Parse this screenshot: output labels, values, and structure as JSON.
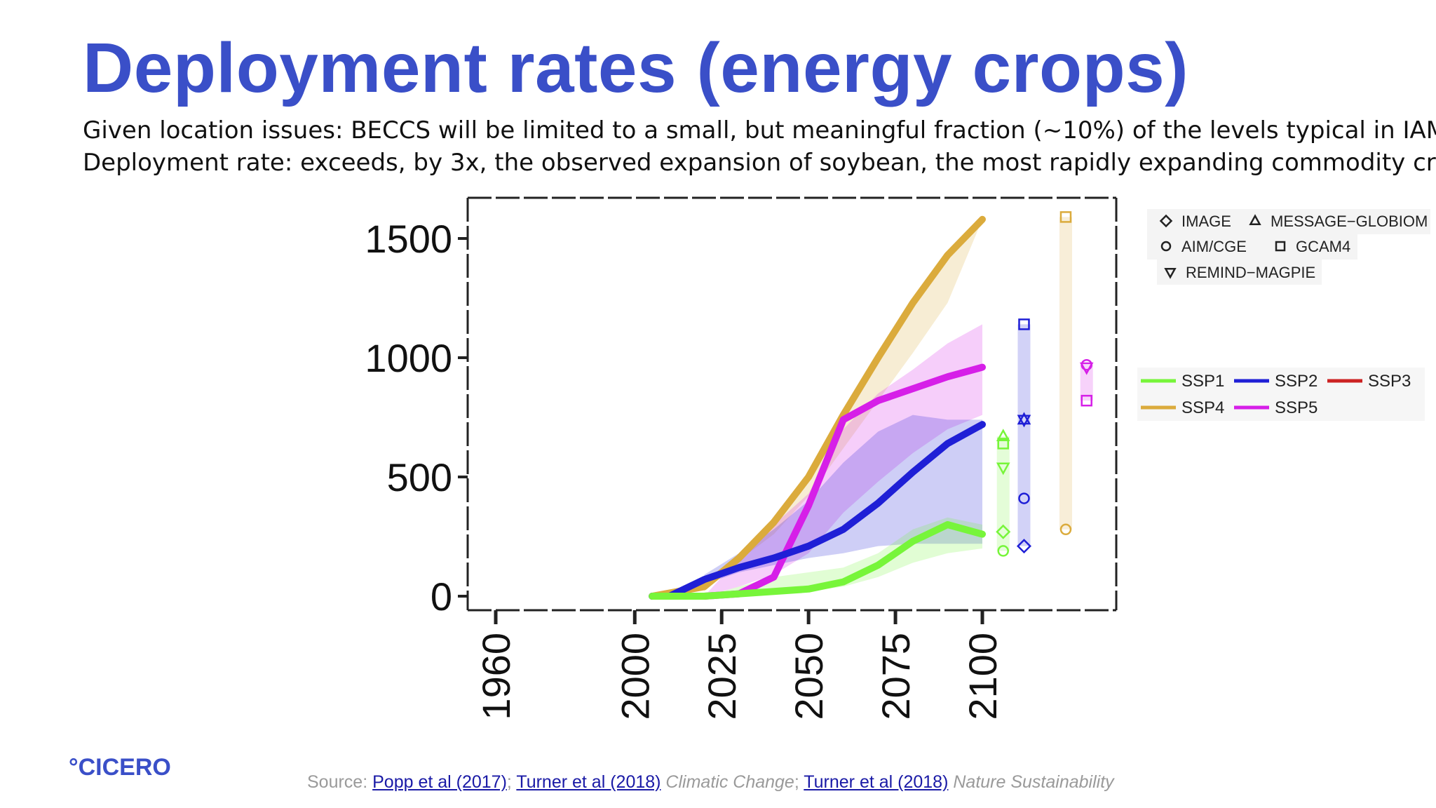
{
  "slide": {
    "title": "Deployment rates (energy crops)",
    "subtitle_1": "Given location issues: BECCS will be limited to a small, but meaningful fraction (~10%) of the levels typical in IAMs",
    "subtitle_2": "Deployment rate: exceeds, by 3x, the observed expansion of soybean, the most rapidly expanding commodity crop",
    "logo": "°CICERO",
    "source": {
      "prefix": "Source: ",
      "link_1": "Popp et al (2017)",
      "sep_1": "; ",
      "link_2": "Turner et al (2018)",
      "journal_1": " Climatic Change",
      "sep_2": "; ",
      "link_3": "Turner et al (2018)",
      "journal_2": " Nature Sustainability"
    }
  },
  "chart_data": {
    "type": "line",
    "xlim": [
      1945,
      2115
    ],
    "ylim": [
      -50,
      1670
    ],
    "x_ticks": [
      1960,
      2000,
      2025,
      2050,
      2075,
      2100
    ],
    "y_ticks": [
      0,
      500,
      1000,
      1500
    ],
    "grid": false,
    "colors": {
      "SSP1": "#77f53a",
      "SSP2": "#1f1fd6",
      "SSP3": "#cc2222",
      "SSP4": "#dbab3c",
      "SSP5": "#d61fe8"
    },
    "series": [
      {
        "name": "SSP4",
        "x": [
          2005,
          2020,
          2030,
          2040,
          2050,
          2060,
          2070,
          2080,
          2090,
          2100
        ],
        "values": [
          0,
          40,
          160,
          310,
          500,
          760,
          1000,
          1230,
          1430,
          1580
        ]
      },
      {
        "name": "SSP5",
        "x": [
          2005,
          2010,
          2020,
          2030,
          2040,
          2050,
          2060,
          2070,
          2080,
          2090,
          2100
        ],
        "values": [
          0,
          0,
          0,
          10,
          80,
          380,
          740,
          820,
          870,
          920,
          960
        ]
      },
      {
        "name": "SSP2",
        "x": [
          2005,
          2010,
          2020,
          2030,
          2040,
          2050,
          2060,
          2070,
          2080,
          2090,
          2100
        ],
        "values": [
          0,
          0,
          70,
          120,
          160,
          210,
          280,
          390,
          520,
          640,
          720
        ]
      },
      {
        "name": "SSP1",
        "x": [
          2005,
          2010,
          2020,
          2030,
          2040,
          2050,
          2060,
          2070,
          2080,
          2090,
          2100
        ],
        "values": [
          0,
          0,
          0,
          10,
          20,
          30,
          60,
          130,
          230,
          300,
          260
        ]
      }
    ],
    "bands": [
      {
        "name": "SSP4",
        "x": [
          2020,
          2030,
          2040,
          2050,
          2060,
          2070,
          2080,
          2090,
          2100
        ],
        "lower": [
          20,
          150,
          260,
          420,
          620,
          820,
          1020,
          1230,
          1580
        ],
        "upper": [
          40,
          170,
          320,
          520,
          780,
          1020,
          1250,
          1440,
          1580
        ]
      },
      {
        "name": "SSP5",
        "x": [
          2020,
          2030,
          2040,
          2050,
          2060,
          2070,
          2080,
          2090,
          2100
        ],
        "lower": [
          0,
          40,
          90,
          180,
          350,
          480,
          600,
          700,
          760
        ],
        "upper": [
          0,
          160,
          300,
          430,
          700,
          850,
          950,
          1060,
          1140
        ]
      },
      {
        "name": "SSP2",
        "x": [
          2020,
          2030,
          2040,
          2050,
          2060,
          2070,
          2080,
          2090,
          2100
        ],
        "lower": [
          50,
          100,
          130,
          160,
          180,
          210,
          220,
          220,
          220
        ],
        "upper": [
          90,
          180,
          280,
          400,
          560,
          690,
          760,
          740,
          740
        ]
      },
      {
        "name": "SSP1",
        "x": [
          2020,
          2030,
          2040,
          2050,
          2060,
          2070,
          2080,
          2090,
          2100
        ],
        "lower": [
          0,
          0,
          10,
          20,
          40,
          80,
          140,
          180,
          200
        ],
        "upper": [
          0,
          40,
          80,
          100,
          120,
          180,
          280,
          330,
          300
        ]
      }
    ],
    "markers_2100": [
      {
        "ssp": "SSP1",
        "x": 2106,
        "points": [
          {
            "model": "MESSAGE-GLOBIOM",
            "value": 670
          },
          {
            "model": "GCAM4",
            "value": 640
          },
          {
            "model": "REMIND-MAGPIE",
            "value": 540
          },
          {
            "model": "IMAGE",
            "value": 270
          },
          {
            "model": "AIM/CGE",
            "value": 190
          }
        ],
        "range": [
          190,
          670
        ]
      },
      {
        "ssp": "SSP2",
        "x": 2112,
        "points": [
          {
            "model": "GCAM4",
            "value": 1140
          },
          {
            "model": "MESSAGE-GLOBIOM",
            "value": 740
          },
          {
            "model": "REMIND-MAGPIE",
            "value": 740
          },
          {
            "model": "AIM/CGE",
            "value": 410
          },
          {
            "model": "IMAGE",
            "value": 210
          }
        ],
        "range": [
          210,
          1140
        ]
      },
      {
        "ssp": "SSP4",
        "x": 2124,
        "points": [
          {
            "model": "GCAM4",
            "value": 1590
          },
          {
            "model": "AIM/CGE",
            "value": 280
          }
        ],
        "range": [
          280,
          1590
        ]
      },
      {
        "ssp": "SSP5",
        "x": 2130,
        "points": [
          {
            "model": "REMIND-MAGPIE",
            "value": 960
          },
          {
            "model": "AIM/CGE",
            "value": 970
          },
          {
            "model": "GCAM4",
            "value": 820
          }
        ],
        "range": [
          820,
          970
        ]
      }
    ],
    "legend_models": [
      {
        "symbol": "diamond",
        "label": "IMAGE"
      },
      {
        "symbol": "triangle-up",
        "label": "MESSAGE−GLOBIOM"
      },
      {
        "symbol": "circle",
        "label": "AIM/CGE"
      },
      {
        "symbol": "square",
        "label": "GCAM4"
      },
      {
        "symbol": "triangle-down",
        "label": "REMIND−MAGPIE"
      }
    ],
    "legend_ssp": [
      "SSP1",
      "SSP2",
      "SSP3",
      "SSP4",
      "SSP5"
    ],
    "legend_placement": "right"
  }
}
